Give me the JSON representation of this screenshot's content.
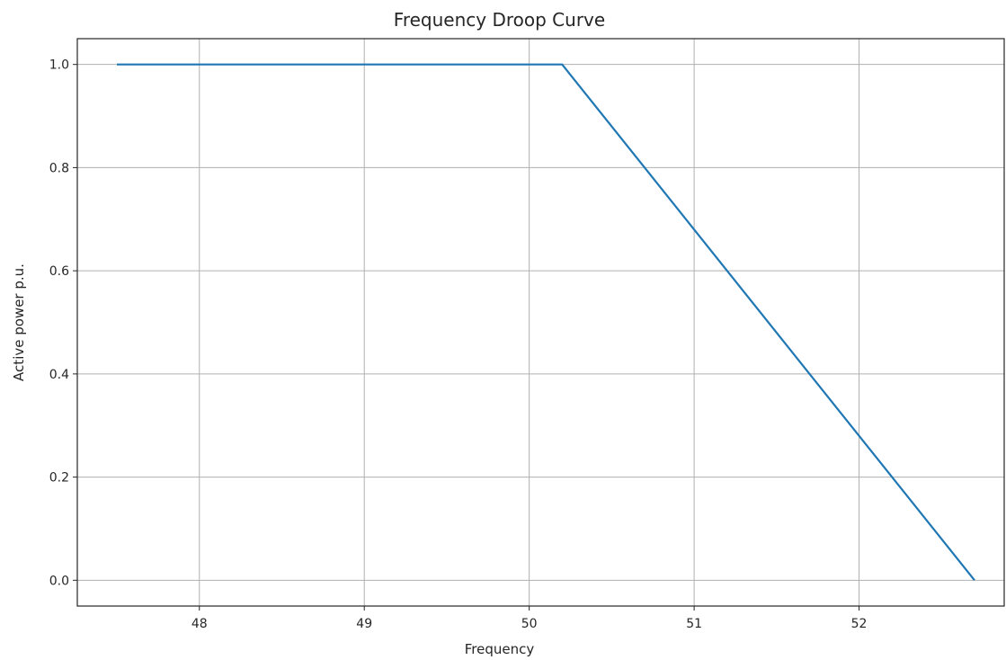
{
  "chart_data": {
    "type": "line",
    "title": "Frequency Droop Curve",
    "xlabel": "Frequency",
    "ylabel": "Active power p.u.",
    "xlim": [
      47.26,
      52.88
    ],
    "ylim": [
      -0.05,
      1.05
    ],
    "x_ticks": [
      48,
      49,
      50,
      51,
      52
    ],
    "y_ticks": [
      0.0,
      0.2,
      0.4,
      0.6,
      0.8,
      1.0
    ],
    "x_tick_labels": [
      "48",
      "49",
      "50",
      "51",
      "52"
    ],
    "y_tick_labels": [
      "0.0",
      "0.2",
      "0.4",
      "0.6",
      "0.8",
      "1.0"
    ],
    "grid": true,
    "legend": "none",
    "series": [
      {
        "color": "#1f77b4",
        "x": [
          47.5,
          50.2,
          52.7
        ],
        "y": [
          1.0,
          1.0,
          0.0
        ]
      }
    ]
  }
}
